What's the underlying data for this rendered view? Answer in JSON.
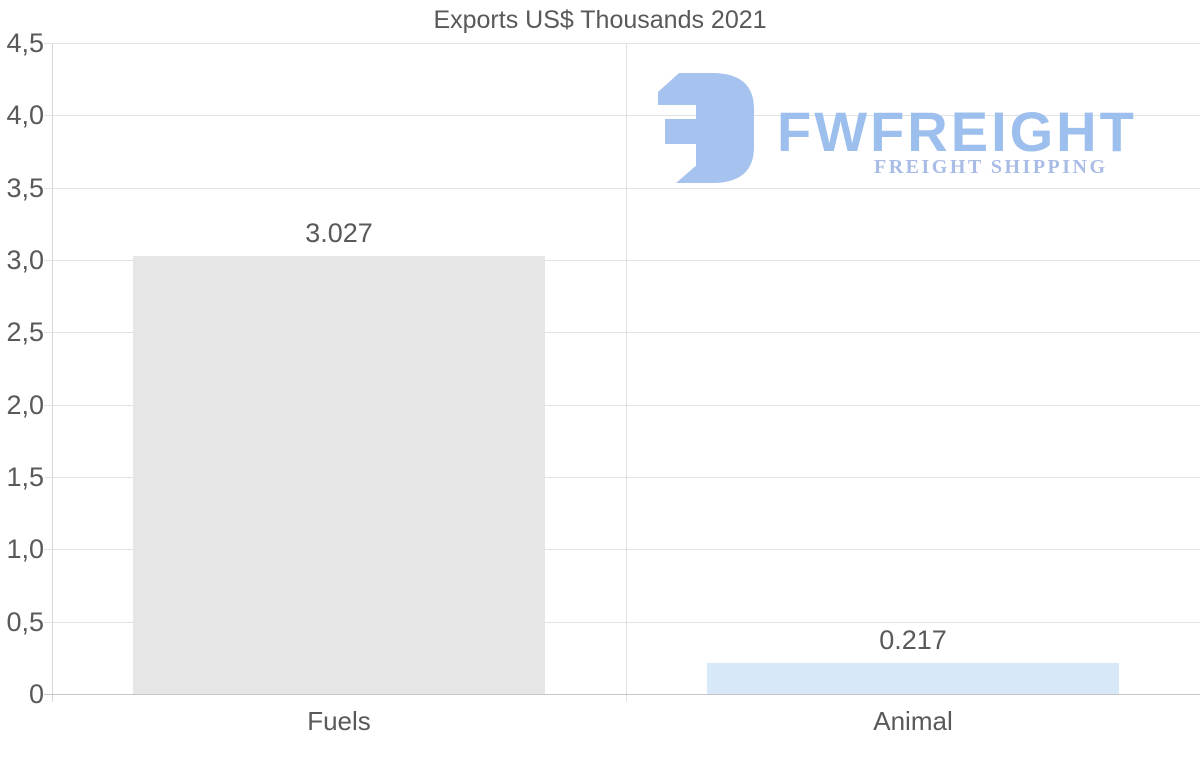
{
  "title": "Exports US$ Thousands 2021",
  "watermark": {
    "brand": "FWFREIGHT",
    "tagline": "FREIGHT SHIPPING",
    "logo_color": "#a6c2ef",
    "brand_color": "#9dbfee",
    "tagline_color": "#a9bce5"
  },
  "colors": {
    "background": "#ffffff",
    "text": "#595959",
    "gridline": "#e2e2e2",
    "axis_line": "#d6d6d6",
    "zero_line": "#c6c6c6"
  },
  "chart_data": {
    "type": "bar",
    "title": "Exports US$ Thousands 2021",
    "xlabel": "",
    "ylabel": "",
    "categories": [
      "Fuels",
      "Animal"
    ],
    "values": [
      3.027,
      0.217
    ],
    "value_labels": [
      "3.027",
      "0.217"
    ],
    "bar_colors": [
      "#e6e6e6",
      "#d7e8f8"
    ],
    "ylim": [
      0,
      4.5
    ],
    "ytick_labels": [
      "4,5",
      "4,0",
      "3,5",
      "3,0",
      "2,5",
      "2,0",
      "1,5",
      "1,0",
      "0,5",
      "0"
    ],
    "decimal_separator": "comma",
    "grid": true,
    "legend": false
  }
}
